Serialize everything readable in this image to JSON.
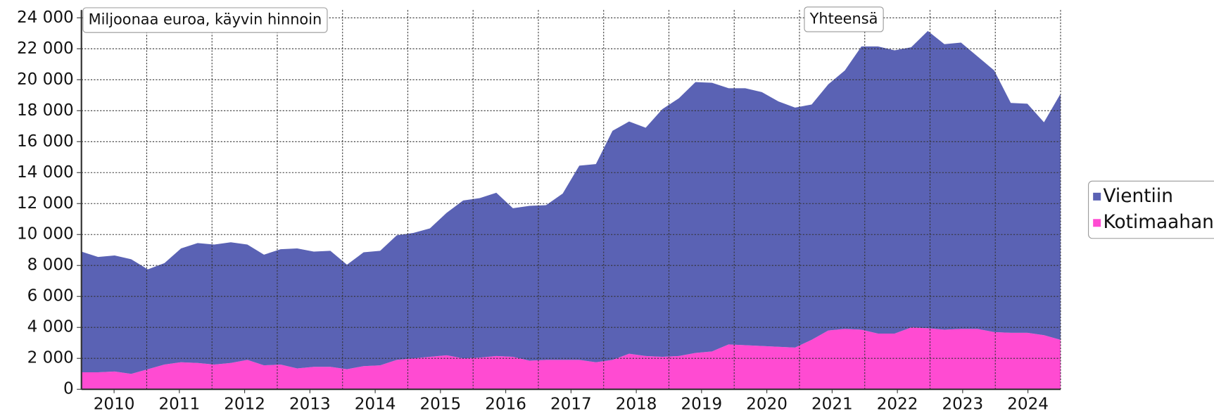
{
  "chart_data": {
    "type": "stacked_area",
    "annotations": [
      "Miljoonaa euroa, käyvin hinnoin",
      "Yhteensä"
    ],
    "categories": [
      null,
      "2010",
      null,
      null,
      null,
      "2011",
      null,
      null,
      null,
      "2012",
      null,
      null,
      null,
      "2013",
      null,
      null,
      null,
      "2014",
      null,
      null,
      null,
      "2015",
      null,
      null,
      null,
      "2016",
      null,
      null,
      null,
      "2017",
      null,
      null,
      null,
      "2018",
      null,
      null,
      null,
      "2019",
      null,
      null,
      null,
      "2020",
      null,
      null,
      null,
      "2021",
      null,
      null,
      null,
      "2022",
      null,
      null,
      null,
      "2023",
      null,
      null,
      null,
      "2024",
      null,
      null
    ],
    "series": [
      {
        "name": "Vientiin",
        "color": "#5a62b4",
        "values": [
          7800,
          7450,
          7500,
          7400,
          6450,
          6550,
          7350,
          7750,
          7750,
          7800,
          7450,
          7150,
          7450,
          7750,
          7450,
          7500,
          6750,
          7350,
          7400,
          8050,
          8100,
          8300,
          9200,
          10200,
          10300,
          10550,
          9600,
          10000,
          10000,
          10750,
          12550,
          12800,
          14800,
          15000,
          14750,
          16000,
          16650,
          17500,
          17350,
          16550,
          16600,
          16400,
          15850,
          15500,
          15200,
          15900,
          16700,
          18300,
          18550,
          18300,
          18100,
          19200,
          18450,
          18500,
          17600,
          16900,
          14850,
          14800,
          13750,
          15900
        ]
      },
      {
        "name": "Kotimaahan",
        "color": "#ff4bd2",
        "values": [
          1100,
          1100,
          1150,
          1000,
          1300,
          1600,
          1750,
          1700,
          1600,
          1700,
          1900,
          1550,
          1600,
          1350,
          1450,
          1450,
          1300,
          1500,
          1550,
          1900,
          2000,
          2100,
          2200,
          2000,
          2050,
          2150,
          2100,
          1850,
          1900,
          1900,
          1900,
          1750,
          1900,
          2300,
          2150,
          2100,
          2150,
          2350,
          2450,
          2900,
          2850,
          2800,
          2750,
          2700,
          3200,
          3800,
          3900,
          3850,
          3600,
          3600,
          4000,
          3950,
          3850,
          3900,
          3900,
          3700,
          3650,
          3650,
          3500,
          3200
        ]
      }
    ],
    "ylim": [
      0,
      24000
    ],
    "yticks": [
      0,
      {
        "value": 2000,
        "label": "2 000"
      },
      {
        "value": 4000,
        "label": "4 000"
      },
      {
        "value": 6000,
        "label": "6 000"
      },
      {
        "value": 8000,
        "label": "8 000"
      },
      {
        "value": 10000,
        "label": "10 000"
      },
      {
        "value": 12000,
        "label": "12 000"
      },
      {
        "value": 14000,
        "label": "14 000"
      },
      {
        "value": 16000,
        "label": "16 000"
      },
      {
        "value": 18000,
        "label": "18 000"
      },
      {
        "value": 20000,
        "label": "20 000"
      },
      {
        "value": 22000,
        "label": "22 000"
      },
      {
        "value": 24000,
        "label": "24 000"
      }
    ],
    "grid": true,
    "legend": "right"
  }
}
